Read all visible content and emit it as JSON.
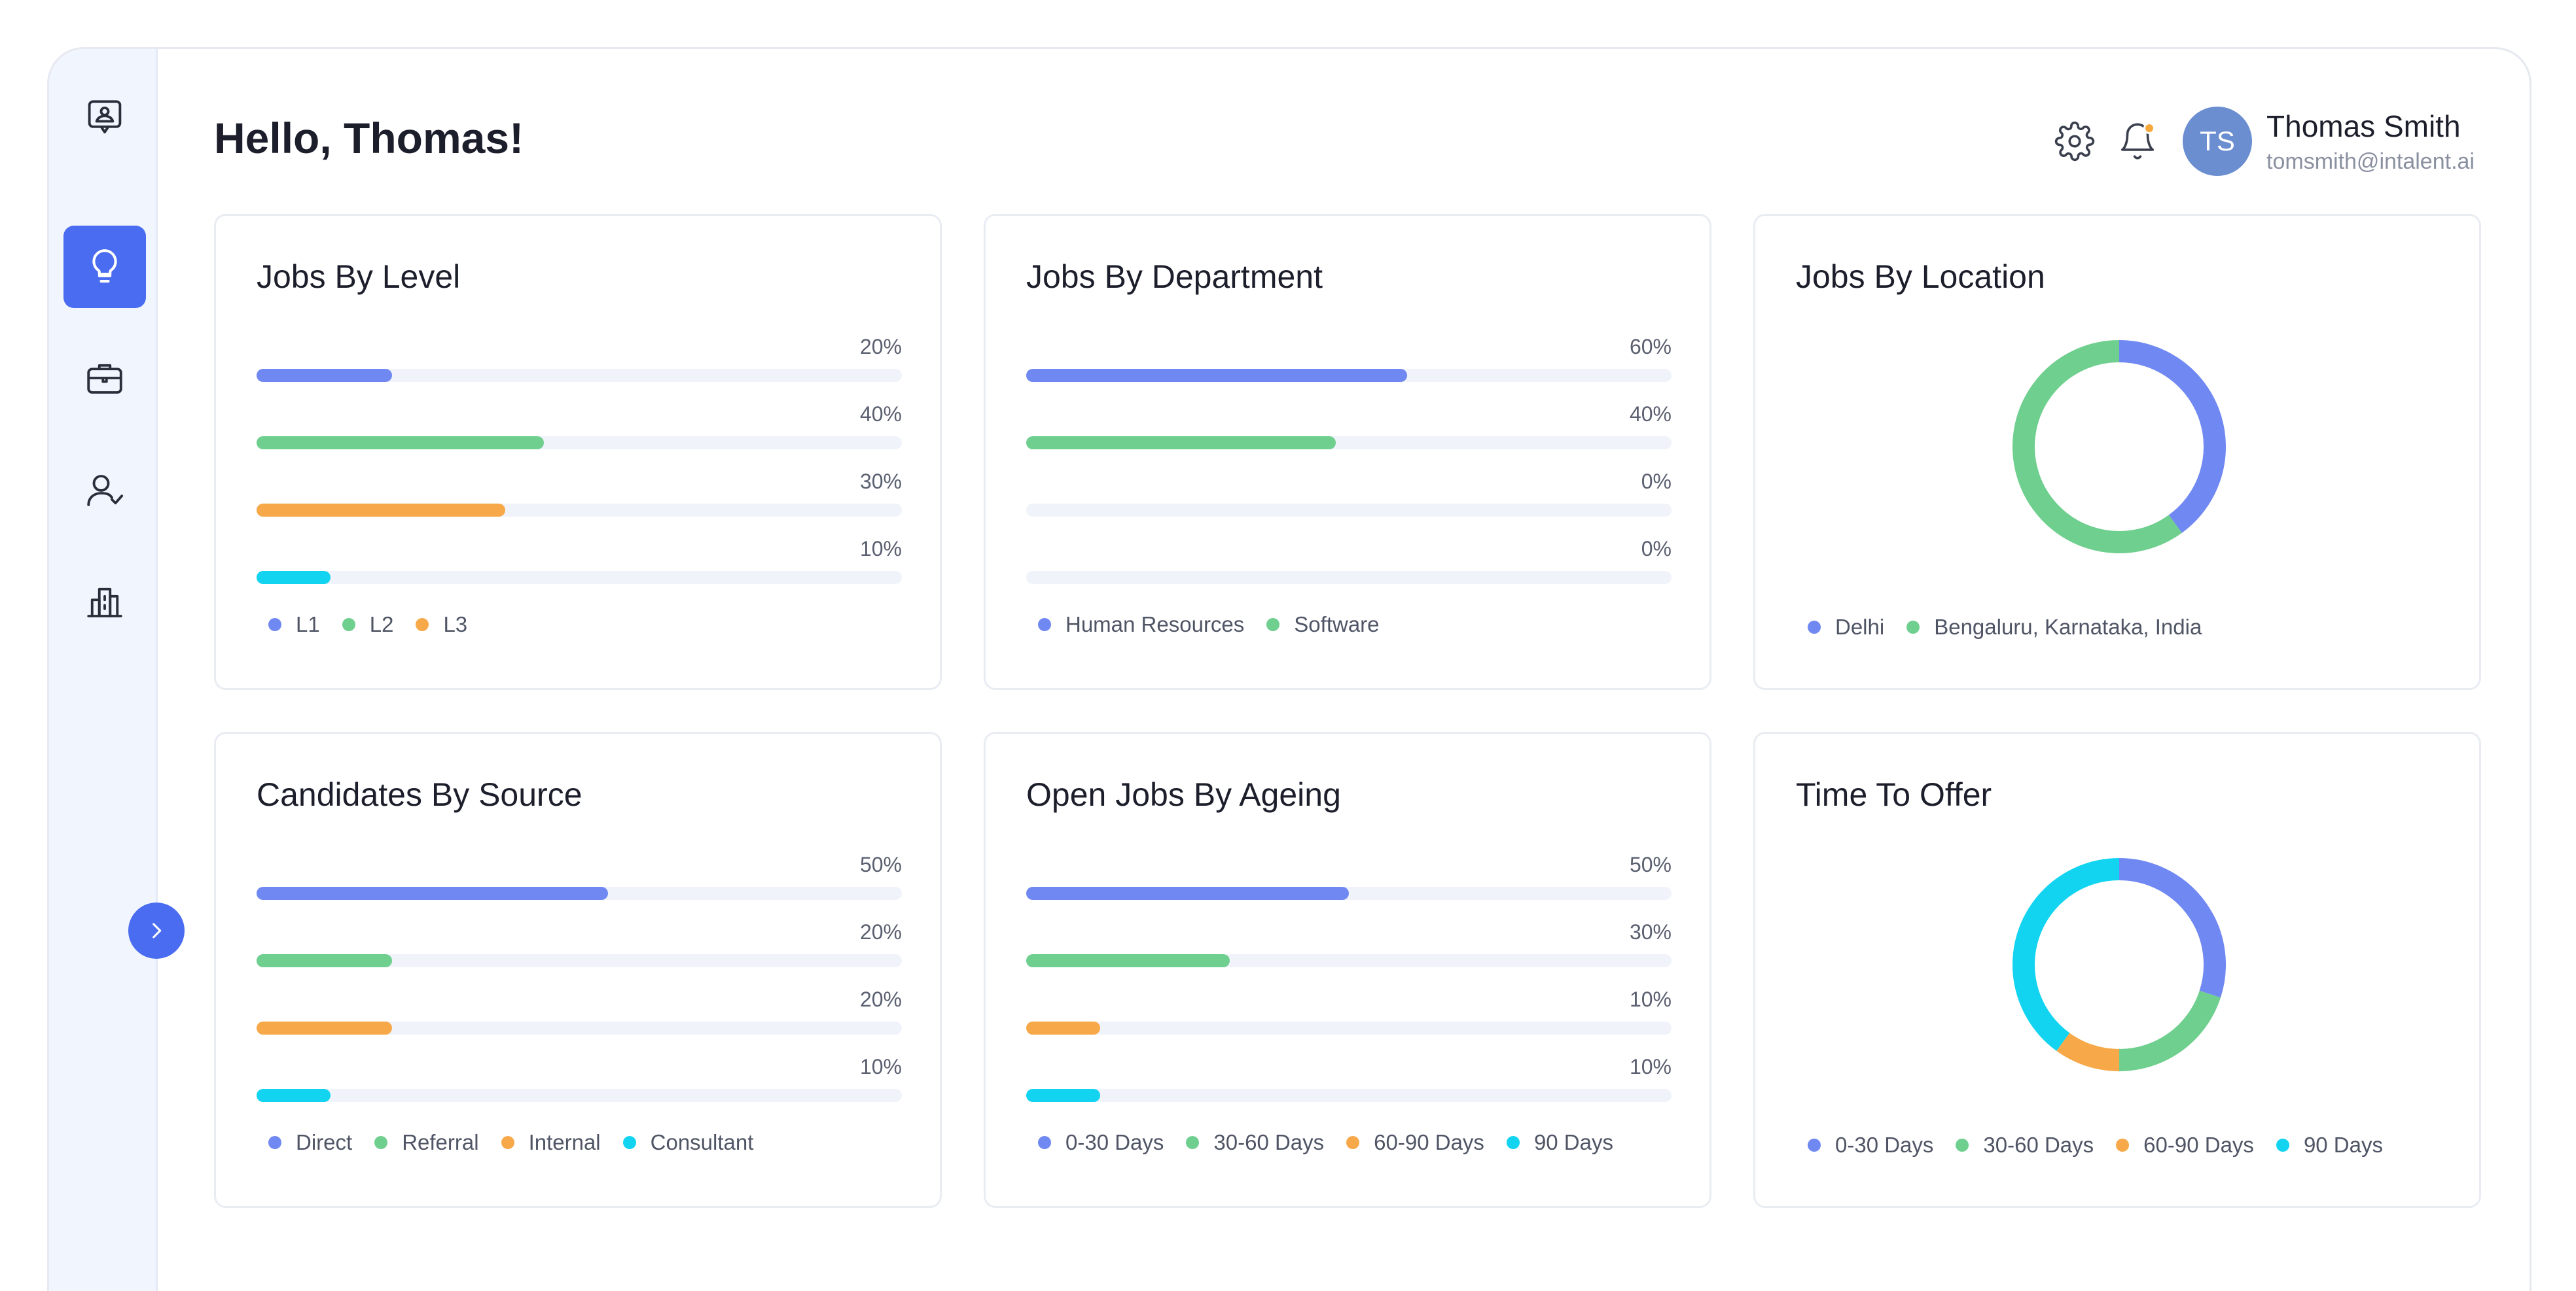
{
  "header": {
    "greeting": "Hello, Thomas!",
    "user_initials": "TS",
    "user_name": "Thomas Smith",
    "user_email": "tomsmith@intalent.ai"
  },
  "sidebar": {
    "items": [
      {
        "icon": "logo-icon"
      },
      {
        "icon": "lightbulb-icon",
        "active": true
      },
      {
        "icon": "briefcase-icon"
      },
      {
        "icon": "user-check-icon"
      },
      {
        "icon": "building-icon"
      }
    ]
  },
  "colors": {
    "blue": "#7088f2",
    "green": "#6fcf8e",
    "orange": "#f7a94a",
    "cyan": "#12d4f0",
    "accent": "#4a6cf0"
  },
  "cards": [
    {
      "title": "Jobs By Level",
      "chart_data": {
        "type": "bar",
        "categories": [
          "L1",
          "L2",
          "L3",
          ""
        ],
        "values": [
          20,
          40,
          30,
          10
        ],
        "labels": [
          "20%",
          "40%",
          "30%",
          "10%"
        ],
        "fill": [
          0.21,
          0.445,
          0.385,
          0.115
        ],
        "legend": [
          "L1",
          "L2",
          "L3"
        ]
      }
    },
    {
      "title": "Jobs By Department",
      "chart_data": {
        "type": "bar",
        "values": [
          60,
          40,
          0,
          0
        ],
        "labels": [
          "60%",
          "40%",
          "0%",
          "0%"
        ],
        "fill": [
          0.59,
          0.48,
          0,
          0
        ],
        "legend": [
          "Human Resources",
          "Software"
        ]
      }
    },
    {
      "title": "Jobs By Location",
      "chart_data": {
        "type": "pie",
        "values": [
          40,
          60
        ],
        "legend": [
          "Delhi",
          "Bengaluru, Karnataka, India"
        ]
      }
    },
    {
      "title": "Candidates By Source",
      "chart_data": {
        "type": "bar",
        "values": [
          50,
          20,
          20,
          10
        ],
        "labels": [
          "50%",
          "20%",
          "20%",
          "10%"
        ],
        "fill": [
          0.545,
          0.21,
          0.21,
          0.115
        ],
        "legend": [
          "Direct",
          "Referral",
          "Internal",
          "Consultant"
        ]
      }
    },
    {
      "title": "Open Jobs By Ageing",
      "chart_data": {
        "type": "bar",
        "values": [
          50,
          30,
          10,
          10
        ],
        "labels": [
          "50%",
          "30%",
          "10%",
          "10%"
        ],
        "fill": [
          0.5,
          0.315,
          0.115,
          0.115
        ],
        "legend": [
          "0-30 Days",
          "30-60 Days",
          "60-90 Days",
          "90 Days"
        ]
      }
    },
    {
      "title": "Time To Offer",
      "chart_data": {
        "type": "pie",
        "values": [
          30,
          20,
          10,
          40
        ],
        "legend": [
          "0-30 Days",
          "30-60 Days",
          "60-90 Days",
          "90 Days"
        ]
      }
    }
  ]
}
